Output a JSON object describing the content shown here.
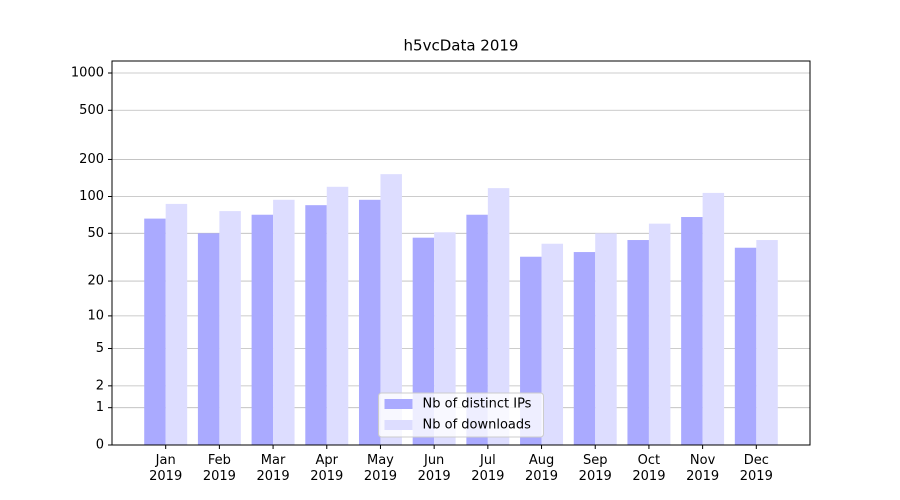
{
  "chart_data": {
    "type": "bar",
    "title": "h5vcData 2019",
    "scale": "log1p",
    "categories": [
      "Jan\n2019",
      "Feb\n2019",
      "Mar\n2019",
      "Apr\n2019",
      "May\n2019",
      "Jun\n2019",
      "Jul\n2019",
      "Aug\n2019",
      "Sep\n2019",
      "Oct\n2019",
      "Nov\n2019",
      "Dec\n2019"
    ],
    "series": [
      {
        "name": "Nb of distinct IPs",
        "color": "#aaaaff",
        "values": [
          66,
          50,
          71,
          85,
          94,
          46,
          71,
          32,
          35,
          44,
          68,
          38
        ]
      },
      {
        "name": "Nb of downloads",
        "color": "#ddddff",
        "values": [
          87,
          76,
          94,
          120,
          152,
          51,
          117,
          41,
          50,
          60,
          107,
          44
        ]
      }
    ],
    "ylim": [
      0,
      1250
    ],
    "yticks": [
      0,
      1,
      2,
      5,
      10,
      20,
      50,
      100,
      200,
      500,
      1000
    ],
    "grid": true,
    "legend": "lower center"
  }
}
